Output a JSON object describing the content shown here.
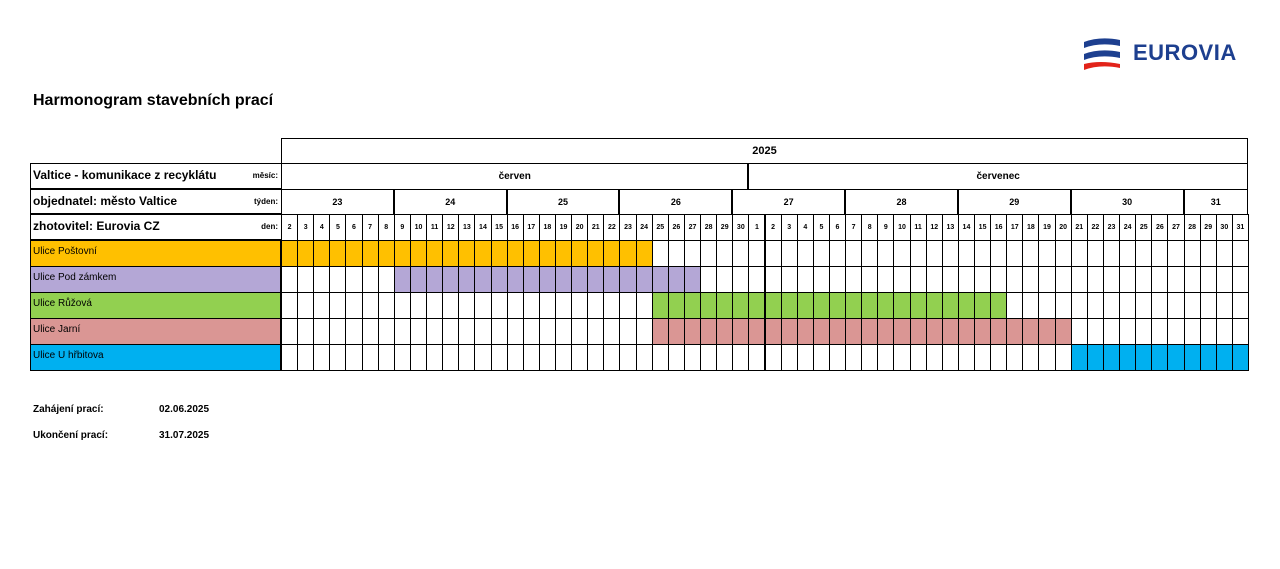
{
  "header": {
    "company": "EUROVIA",
    "title": "Harmonogram stavebních prací"
  },
  "schedule": {
    "year": "2025",
    "project_lines": [
      {
        "text": "Valtice - komunikace z recyklátu",
        "label": "měsíc:"
      },
      {
        "text": "objednatel: město Valtice",
        "label": "týden:"
      },
      {
        "text": "zhotovitel: Eurovia CZ",
        "label": "den:"
      }
    ],
    "months": [
      {
        "name": "červen",
        "span": 29
      },
      {
        "name": "červenec",
        "span": 31
      }
    ],
    "weeks": [
      {
        "week": 23,
        "span": 7
      },
      {
        "week": 24,
        "span": 7
      },
      {
        "week": 25,
        "span": 7
      },
      {
        "week": 26,
        "span": 7
      },
      {
        "week": 27,
        "span": 7
      },
      {
        "week": 28,
        "span": 7
      },
      {
        "week": 29,
        "span": 7
      },
      {
        "week": 30,
        "span": 7
      },
      {
        "week": 31,
        "span": 4
      }
    ],
    "days": [
      2,
      3,
      4,
      5,
      6,
      7,
      8,
      9,
      10,
      11,
      12,
      13,
      14,
      15,
      16,
      17,
      18,
      19,
      20,
      21,
      22,
      23,
      24,
      25,
      26,
      27,
      28,
      29,
      30,
      1,
      2,
      3,
      4,
      5,
      6,
      7,
      8,
      9,
      10,
      11,
      12,
      13,
      14,
      15,
      16,
      17,
      18,
      19,
      20,
      21,
      22,
      23,
      24,
      25,
      26,
      27,
      28,
      29,
      30,
      31
    ],
    "tasks": [
      {
        "name": "Ulice Poštovní",
        "color": "#ffc000",
        "start": 0,
        "end": 22
      },
      {
        "name": "Ulice Pod zámkem",
        "color": "#b4a7d6",
        "start": 7,
        "end": 25
      },
      {
        "name": "Ulice Růžová",
        "color": "#92d050",
        "start": 23,
        "end": 44
      },
      {
        "name": "Ulice Jarní",
        "color": "#da9694",
        "start": 23,
        "end": 48
      },
      {
        "name": "Ulice U hřbitova",
        "color": "#00b0f0",
        "start": 49,
        "end": 59
      }
    ]
  },
  "footer": {
    "start_label": "Zahájení prací:",
    "start_date": "02.06.2025",
    "end_label": "Ukončení prací:",
    "end_date": "31.07.2025"
  }
}
